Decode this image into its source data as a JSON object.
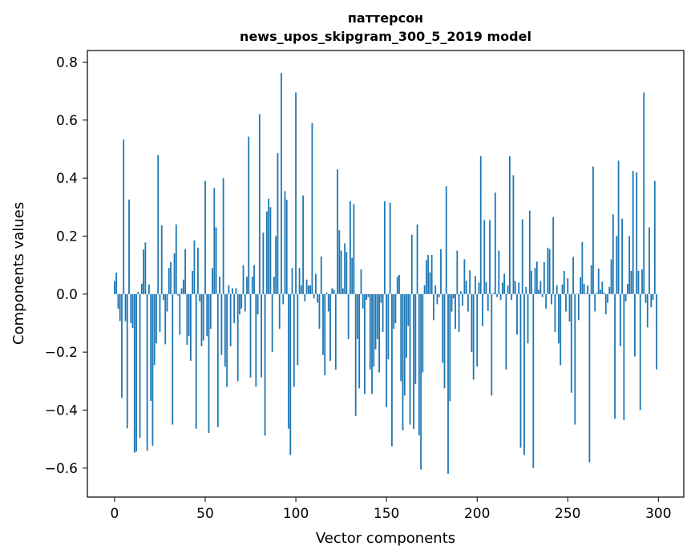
{
  "chart_data": {
    "type": "bar",
    "title_line1": "паттерсон",
    "title_line2": "news_upos_skipgram_300_5_2019 model",
    "xlabel": "Vector components",
    "ylabel": "Components values",
    "xlim": [
      -15,
      314
    ],
    "ylim": [
      -0.7,
      0.84
    ],
    "xticks": [
      0,
      50,
      100,
      150,
      200,
      250,
      300
    ],
    "yticks": [
      -0.6,
      -0.4,
      -0.2,
      0.0,
      0.2,
      0.4,
      0.6,
      0.8
    ],
    "xtick_labels": [
      "0",
      "50",
      "100",
      "150",
      "200",
      "250",
      "300"
    ],
    "ytick_labels": [
      "−0.6",
      "−0.4",
      "−0.2",
      "0.0",
      "0.2",
      "0.4",
      "0.6",
      "0.8"
    ],
    "bar_color": "#1f77b4",
    "values": [
      0.045,
      0.074,
      -0.05,
      -0.093,
      -0.358,
      0.533,
      -0.094,
      -0.463,
      0.326,
      -0.1,
      -0.117,
      -0.547,
      -0.543,
      0.008,
      -0.495,
      0.036,
      0.154,
      0.178,
      -0.54,
      0.033,
      -0.368,
      -0.523,
      -0.245,
      -0.17,
      0.48,
      -0.13,
      0.237,
      -0.02,
      -0.173,
      -0.06,
      0.09,
      0.11,
      -0.45,
      0.14,
      0.24,
      -0.005,
      -0.14,
      0.02,
      0.05,
      0.155,
      -0.175,
      -0.145,
      -0.23,
      0.08,
      0.185,
      -0.464,
      0.16,
      -0.025,
      -0.18,
      -0.16,
      0.39,
      -0.145,
      -0.479,
      -0.12,
      0.09,
      0.366,
      0.23,
      -0.459,
      0.06,
      -0.21,
      0.4,
      -0.25,
      -0.32,
      0.03,
      -0.18,
      0.02,
      -0.1,
      0.02,
      -0.3,
      -0.07,
      -0.05,
      0.1,
      -0.06,
      0.06,
      0.543,
      -0.288,
      0.06,
      0.1,
      -0.32,
      -0.07,
      0.62,
      -0.287,
      0.212,
      -0.488,
      0.285,
      0.329,
      0.3,
      -0.2,
      0.06,
      0.2,
      0.486,
      -0.12,
      0.762,
      -0.035,
      0.355,
      0.325,
      -0.464,
      -0.555,
      0.09,
      -0.32,
      0.695,
      -0.245,
      0.09,
      0.03,
      0.34,
      -0.025,
      0.05,
      0.03,
      0.03,
      0.59,
      -0.015,
      0.07,
      -0.03,
      -0.12,
      0.13,
      -0.21,
      -0.28,
      0.005,
      -0.06,
      -0.23,
      0.02,
      0.015,
      -0.26,
      0.43,
      0.22,
      0.15,
      0.02,
      0.175,
      0.145,
      -0.155,
      0.32,
      0.125,
      0.31,
      -0.42,
      -0.155,
      -0.325,
      0.085,
      -0.05,
      -0.345,
      -0.02,
      -0.01,
      -0.26,
      -0.344,
      -0.25,
      -0.19,
      -0.155,
      -0.27,
      -0.03,
      -0.13,
      0.32,
      -0.39,
      -0.225,
      0.315,
      -0.525,
      -0.12,
      -0.1,
      0.06,
      0.066,
      -0.3,
      -0.47,
      -0.35,
      -0.22,
      -0.11,
      -0.45,
      0.205,
      -0.465,
      -0.31,
      0.24,
      -0.487,
      -0.605,
      -0.27,
      0.03,
      0.117,
      0.135,
      0.075,
      0.135,
      -0.09,
      0.03,
      -0.035,
      -0.01,
      0.155,
      -0.237,
      -0.325,
      0.372,
      -0.62,
      -0.37,
      -0.06,
      -0.015,
      -0.12,
      0.15,
      -0.13,
      0.01,
      -0.04,
      0.12,
      0.046,
      -0.06,
      0.082,
      -0.2,
      -0.295,
      0.062,
      -0.25,
      0.04,
      0.476,
      -0.11,
      0.255,
      0.042,
      -0.058,
      0.255,
      -0.35,
      0.004,
      0.35,
      -0.01,
      0.15,
      -0.02,
      0.04,
      0.07,
      -0.26,
      0.03,
      0.475,
      -0.02,
      0.41,
      0.045,
      -0.14,
      0.04,
      -0.53,
      0.258,
      -0.555,
      0.025,
      -0.17,
      0.288,
      0.08,
      -0.6,
      0.09,
      0.112,
      0.015,
      0.045,
      -0.01,
      0.11,
      -0.05,
      0.16,
      0.155,
      -0.035,
      0.265,
      -0.13,
      0.03,
      -0.17,
      -0.245,
      0.033,
      0.08,
      -0.06,
      0.055,
      -0.095,
      -0.34,
      0.128,
      -0.45,
      0.002,
      -0.09,
      0.058,
      0.18,
      0.035,
      0.002,
      0.03,
      -0.58,
      0.1,
      0.44,
      -0.06,
      0.005,
      0.088,
      0.015,
      0.043,
      0.005,
      -0.07,
      -0.03,
      0.025,
      0.12,
      0.275,
      -0.43,
      0.2,
      0.46,
      -0.18,
      0.26,
      -0.435,
      -0.025,
      0.035,
      0.2,
      0.08,
      0.425,
      -0.215,
      0.42,
      0.08,
      -0.4,
      0.085,
      0.695,
      -0.03,
      -0.115,
      0.23,
      -0.045,
      -0.02,
      0.39,
      -0.26
    ]
  }
}
